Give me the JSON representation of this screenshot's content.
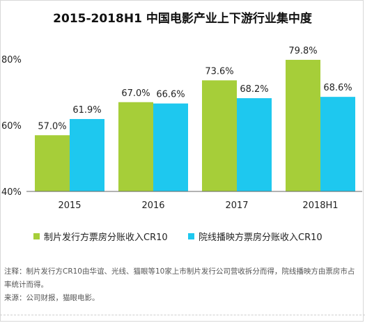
{
  "chart_data": {
    "type": "bar",
    "title": "2015-2018H1 中国电影产业上下游行业集中度",
    "categories": [
      "2015",
      "2016",
      "2017",
      "2018H1"
    ],
    "series": [
      {
        "name": "制片发行方票房分账收入CR10",
        "color": "#a6ce39",
        "values": [
          57.0,
          67.0,
          73.6,
          79.8
        ],
        "labels": [
          "57.0%",
          "67.0%",
          "73.6%",
          "79.8%"
        ]
      },
      {
        "name": "院线播映方票房分账收入CR10",
        "color": "#1ec8ef",
        "values": [
          61.9,
          66.6,
          68.2,
          68.6
        ],
        "labels": [
          "61.9%",
          "66.6%",
          "68.2%",
          "68.6%"
        ]
      }
    ],
    "ylim": [
      40,
      80
    ],
    "yticks": [
      40,
      60,
      80
    ],
    "ytick_labels": [
      "40%",
      "60%",
      "80%"
    ],
    "grid": false,
    "legend_position": "bottom"
  },
  "notes": {
    "note": "注释：制片发行方CR10由华谊、光线、猫眼等10家上市制片发行公司营收拆分而得，院线播映方由票房市占率统计而得。",
    "source": "来源：公司财报，猫眼电影。"
  }
}
